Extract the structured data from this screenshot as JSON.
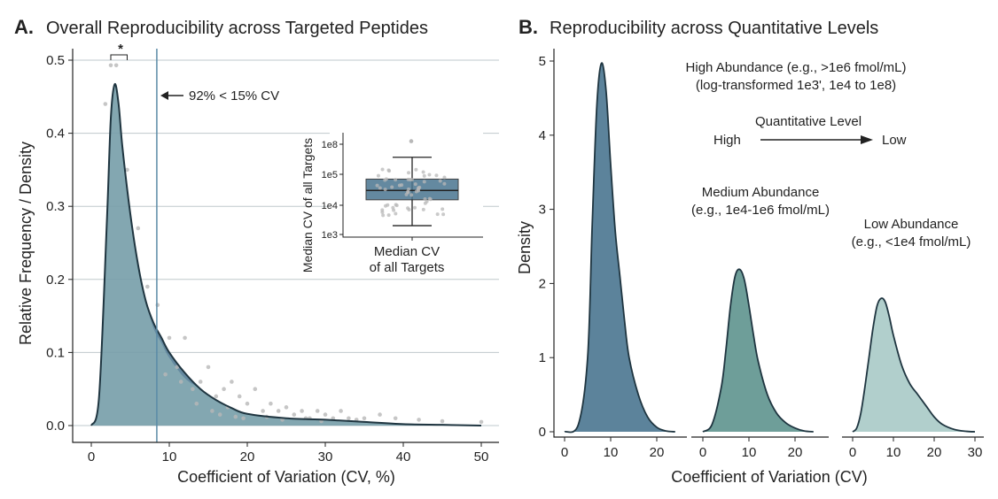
{
  "colors": {
    "high": "#4a7590",
    "medium": "#5e948e",
    "low": "#a9cac6",
    "curve": "#1f3540",
    "points": "#b8b8b8",
    "grid": "#bfc8cc",
    "vline": "#5a8aa6"
  },
  "chart_data": [
    {
      "type": "area",
      "panel_label": "A.",
      "title": "Overall Reproducibility across Targeted Peptides",
      "xlabel": "Coefficient of Variation (CV, %)",
      "ylabel": "Relative Frequency / Density",
      "xlim": [
        0,
        50
      ],
      "ylim": [
        0,
        0.5
      ],
      "xticks": [
        0,
        10,
        20,
        30,
        40,
        50
      ],
      "yticks": [
        "0.0",
        "0.1",
        "0.2",
        "0.3",
        "0.4",
        "0.5"
      ],
      "grid": "horizontal",
      "density": {
        "x": [
          0,
          1,
          2,
          2.5,
          3,
          3.5,
          4,
          5,
          6,
          7,
          8,
          9,
          10,
          12,
          14,
          16,
          18,
          20,
          25,
          30,
          35,
          40,
          45,
          50
        ],
        "y": [
          0,
          0.04,
          0.28,
          0.42,
          0.467,
          0.44,
          0.38,
          0.29,
          0.22,
          0.17,
          0.14,
          0.12,
          0.1,
          0.072,
          0.05,
          0.035,
          0.024,
          0.016,
          0.01,
          0.008,
          0.005,
          0.002,
          0.001,
          0
        ]
      },
      "points": {
        "x": [
          2.5,
          3.2,
          1.8,
          4.6,
          6,
          7.2,
          8.5,
          10,
          12,
          13,
          14,
          15,
          16,
          17,
          18,
          19,
          20,
          21,
          22,
          23,
          24,
          25,
          26,
          27,
          28,
          29,
          30,
          31,
          32,
          33,
          35,
          37,
          39,
          42,
          45,
          50,
          11,
          13.5,
          15.5,
          17.5,
          19.5,
          22.5,
          9.5,
          11.5,
          16.5,
          18.5,
          24.5,
          27.5,
          29.5,
          34
        ],
        "y": [
          0.493,
          0.493,
          0.44,
          0.35,
          0.27,
          0.19,
          0.165,
          0.12,
          0.12,
          0.05,
          0.06,
          0.08,
          0.04,
          0.05,
          0.06,
          0.04,
          0.03,
          0.05,
          0.02,
          0.03,
          0.02,
          0.025,
          0.015,
          0.02,
          0.01,
          0.02,
          0.015,
          0.01,
          0.02,
          0.01,
          0.01,
          0.015,
          0.01,
          0.008,
          0.006,
          0.005,
          0.08,
          0.03,
          0.02,
          0.025,
          0.01,
          0.012,
          0.07,
          0.06,
          0.015,
          0.012,
          0.008,
          0.01,
          0.006,
          0.008
        ]
      },
      "vline": {
        "x": 8.4,
        "label": "92% < 15% CV"
      },
      "significance": "*",
      "inset": {
        "type": "box",
        "ylabel": "Median CV of all Targets",
        "xlabel_line1": "Median CV",
        "xlabel_line2": "of all Targets",
        "yticks": [
          "1e3",
          "1e4",
          "1e5",
          "1e8"
        ],
        "box": {
          "min": "2e3",
          "q1": "1.5e4",
          "median": "3e4",
          "q3": "7e4",
          "max": "5e6",
          "outlier": "2e8"
        }
      }
    },
    {
      "type": "area",
      "panel_label": "B.",
      "title": "Reproducibility across Quantitative Levels",
      "xlabel": "Coefficient of Variation (CV)",
      "ylabel": "Density",
      "ylim": [
        0,
        5
      ],
      "yticks": [
        "0",
        "1",
        "2",
        "3",
        "4",
        "5"
      ],
      "annotation_high_1": "High Abundance (e.g., >1e6 fmol/mL)",
      "annotation_high_2": "(log-transformed 1e3', 1e4 to 1e8)",
      "arrow_title": "Quantitative Level",
      "arrow_from": "High",
      "arrow_to": "Low",
      "series": [
        {
          "level": "high",
          "xlim": [
            -1,
            25
          ],
          "xticks": [
            0,
            10,
            20
          ],
          "x": [
            0,
            3,
            5,
            6,
            7,
            8,
            9,
            10,
            11,
            12,
            13,
            14,
            16,
            18,
            20,
            22,
            24
          ],
          "y": [
            0,
            0.1,
            1.0,
            2.8,
            4.4,
            4.97,
            4.6,
            3.6,
            2.7,
            2.1,
            1.5,
            1.0,
            0.5,
            0.2,
            0.06,
            0.01,
            0
          ]
        },
        {
          "level": "medium",
          "label_1": "Medium Abundance",
          "label_2": "(e.g., 1e4-1e6 fmol/mL)",
          "xlim": [
            -1,
            25
          ],
          "xticks": [
            0,
            10,
            20
          ],
          "x": [
            0,
            2,
            4,
            5,
            6,
            7,
            8,
            9,
            10,
            11,
            12,
            14,
            16,
            18,
            20,
            22,
            24
          ],
          "y": [
            0,
            0.1,
            0.6,
            1.1,
            1.7,
            2.1,
            2.19,
            2.05,
            1.7,
            1.3,
            0.95,
            0.5,
            0.25,
            0.12,
            0.05,
            0.01,
            0
          ]
        },
        {
          "level": "low",
          "label_1": "Low Abundance",
          "label_2": "(e.g., <1e4 fmol/mL)",
          "xlim": [
            -1,
            31
          ],
          "xticks": [
            0,
            10,
            20,
            30
          ],
          "x": [
            0,
            1,
            2,
            3,
            4,
            5,
            6,
            7,
            8,
            9,
            10,
            12,
            14,
            16,
            18,
            20,
            22,
            25,
            28,
            30
          ],
          "y": [
            0,
            0.05,
            0.25,
            0.6,
            1.0,
            1.4,
            1.7,
            1.8,
            1.75,
            1.55,
            1.3,
            0.9,
            0.65,
            0.5,
            0.35,
            0.2,
            0.1,
            0.03,
            0.005,
            0
          ]
        }
      ]
    }
  ]
}
